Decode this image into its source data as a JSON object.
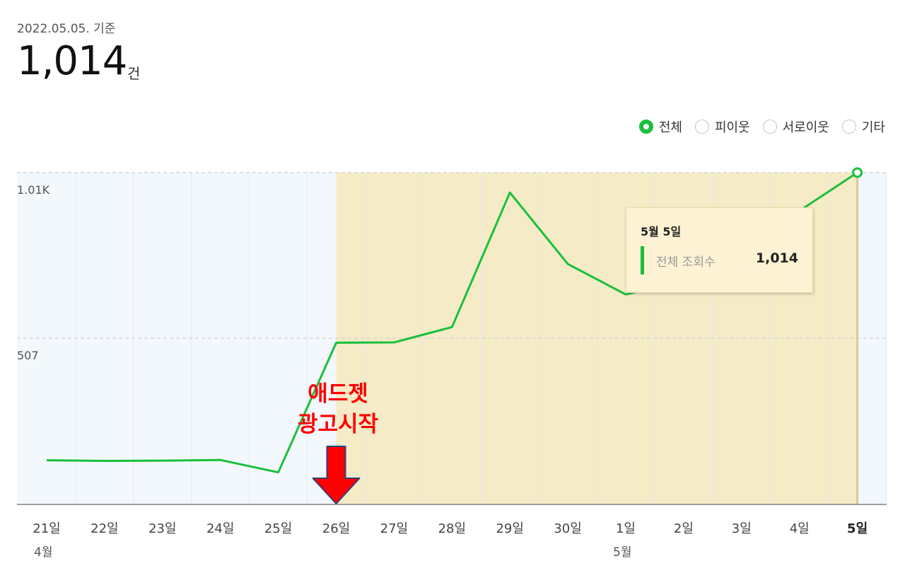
{
  "header": {
    "date_label": "2022.05.05. 기준",
    "total": "1,014",
    "unit": "건"
  },
  "legend": {
    "items": [
      {
        "label": "전체",
        "selected": true
      },
      {
        "label": "피이웃",
        "selected": false
      },
      {
        "label": "서로이웃",
        "selected": false
      },
      {
        "label": "기타",
        "selected": false
      }
    ]
  },
  "tooltip": {
    "title": "5월 5일",
    "series_label": "전체 조회수",
    "value": "1,014"
  },
  "annotation": {
    "line1": "애드젯",
    "line2": "광고시작"
  },
  "colors": {
    "line": "#19c03b",
    "highlight": "#f5ebc6",
    "plot_bg": "#f3f8fd",
    "annotation": "#ff0000",
    "arrow": "#ff0000",
    "arrow_outline": "#2e3f7a"
  },
  "chart_data": {
    "type": "line",
    "categories": [
      "21일",
      "22일",
      "23일",
      "24일",
      "25일",
      "26일",
      "27일",
      "28일",
      "29일",
      "30일",
      "1일",
      "2일",
      "3일",
      "4일",
      "5일"
    ],
    "month_labels": [
      {
        "index": 0,
        "label": "4월"
      },
      {
        "index": 10,
        "label": "5월"
      }
    ],
    "series": [
      {
        "values": [
          133,
          131,
          132,
          134,
          96,
          493,
          494,
          541,
          953,
          734,
          641,
          683,
          707,
          897,
          1014
        ]
      }
    ],
    "y_tick_labels": [
      {
        "value": 507,
        "label": "507"
      },
      {
        "value": 1014,
        "label": "1.01K"
      }
    ],
    "ylim": [
      0,
      1014
    ],
    "highlight_range": [
      "26일",
      "5일"
    ],
    "selected_point": "5일",
    "grid": true
  }
}
